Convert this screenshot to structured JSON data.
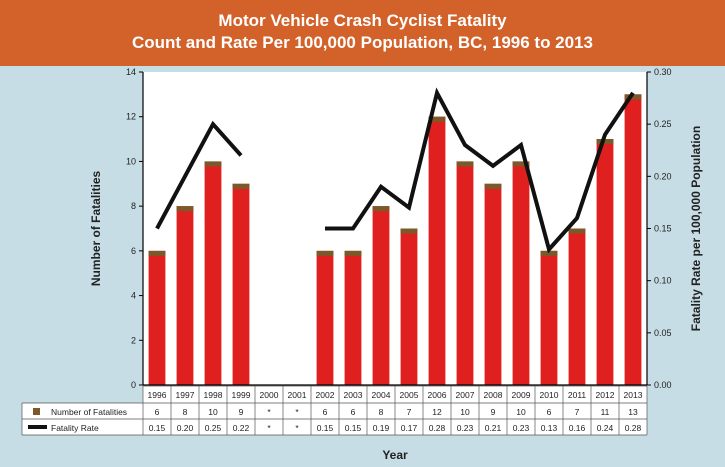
{
  "title_line1": "Motor Vehicle Crash Cyclist Fatality",
  "title_line2": "Count and Rate Per 100,000 Population, BC, 1996 to 2013",
  "colors": {
    "background": "#c7dde6",
    "title_bar": "#d2622a",
    "bar": "#e0201f",
    "bar_cap": "#7a5a2a",
    "line": "#111111"
  },
  "chart_data": {
    "type": "bar",
    "title": "Motor Vehicle Crash Cyclist Fatality Count and Rate Per 100,000 Population, BC, 1996 to 2013",
    "categories": [
      "1996",
      "1997",
      "1998",
      "1999",
      "2000",
      "2001",
      "2002",
      "2003",
      "2004",
      "2005",
      "2006",
      "2007",
      "2008",
      "2009",
      "2010",
      "2011",
      "2012",
      "2013"
    ],
    "xlabel": "Year",
    "ylabel": "Number of Fatalities",
    "y2label": "Fatality Rate per 100,000 Population",
    "ylim": [
      0,
      14
    ],
    "y2lim": [
      0,
      0.3
    ],
    "yticks": [
      "0",
      "2",
      "4",
      "6",
      "8",
      "10",
      "12",
      "14"
    ],
    "y2ticks": [
      "0.00",
      "0.05",
      "0.10",
      "0.15",
      "0.20",
      "0.25",
      "0.30"
    ],
    "series": [
      {
        "name": "Number of Fatalities",
        "type": "bar",
        "values": [
          6,
          8,
          10,
          9,
          null,
          null,
          6,
          6,
          8,
          7,
          12,
          10,
          9,
          10,
          6,
          7,
          11,
          13
        ],
        "labels": [
          "6",
          "8",
          "10",
          "9",
          "*",
          "*",
          "6",
          "6",
          "8",
          "7",
          "12",
          "10",
          "9",
          "10",
          "6",
          "7",
          "11",
          "13"
        ]
      },
      {
        "name": "Fatality Rate",
        "type": "line",
        "axis": "right",
        "values": [
          0.15,
          0.2,
          0.25,
          0.22,
          null,
          null,
          0.15,
          0.15,
          0.19,
          0.17,
          0.28,
          0.23,
          0.21,
          0.23,
          0.13,
          0.16,
          0.24,
          0.28
        ],
        "labels": [
          "0.15",
          "0.20",
          "0.25",
          "0.22",
          "*",
          "*",
          "0.15",
          "0.15",
          "0.19",
          "0.17",
          "0.28",
          "0.23",
          "0.21",
          "0.23",
          "0.13",
          "0.16",
          "0.24",
          "0.28"
        ]
      }
    ],
    "grid": false,
    "legend": "data table below x-axis"
  }
}
